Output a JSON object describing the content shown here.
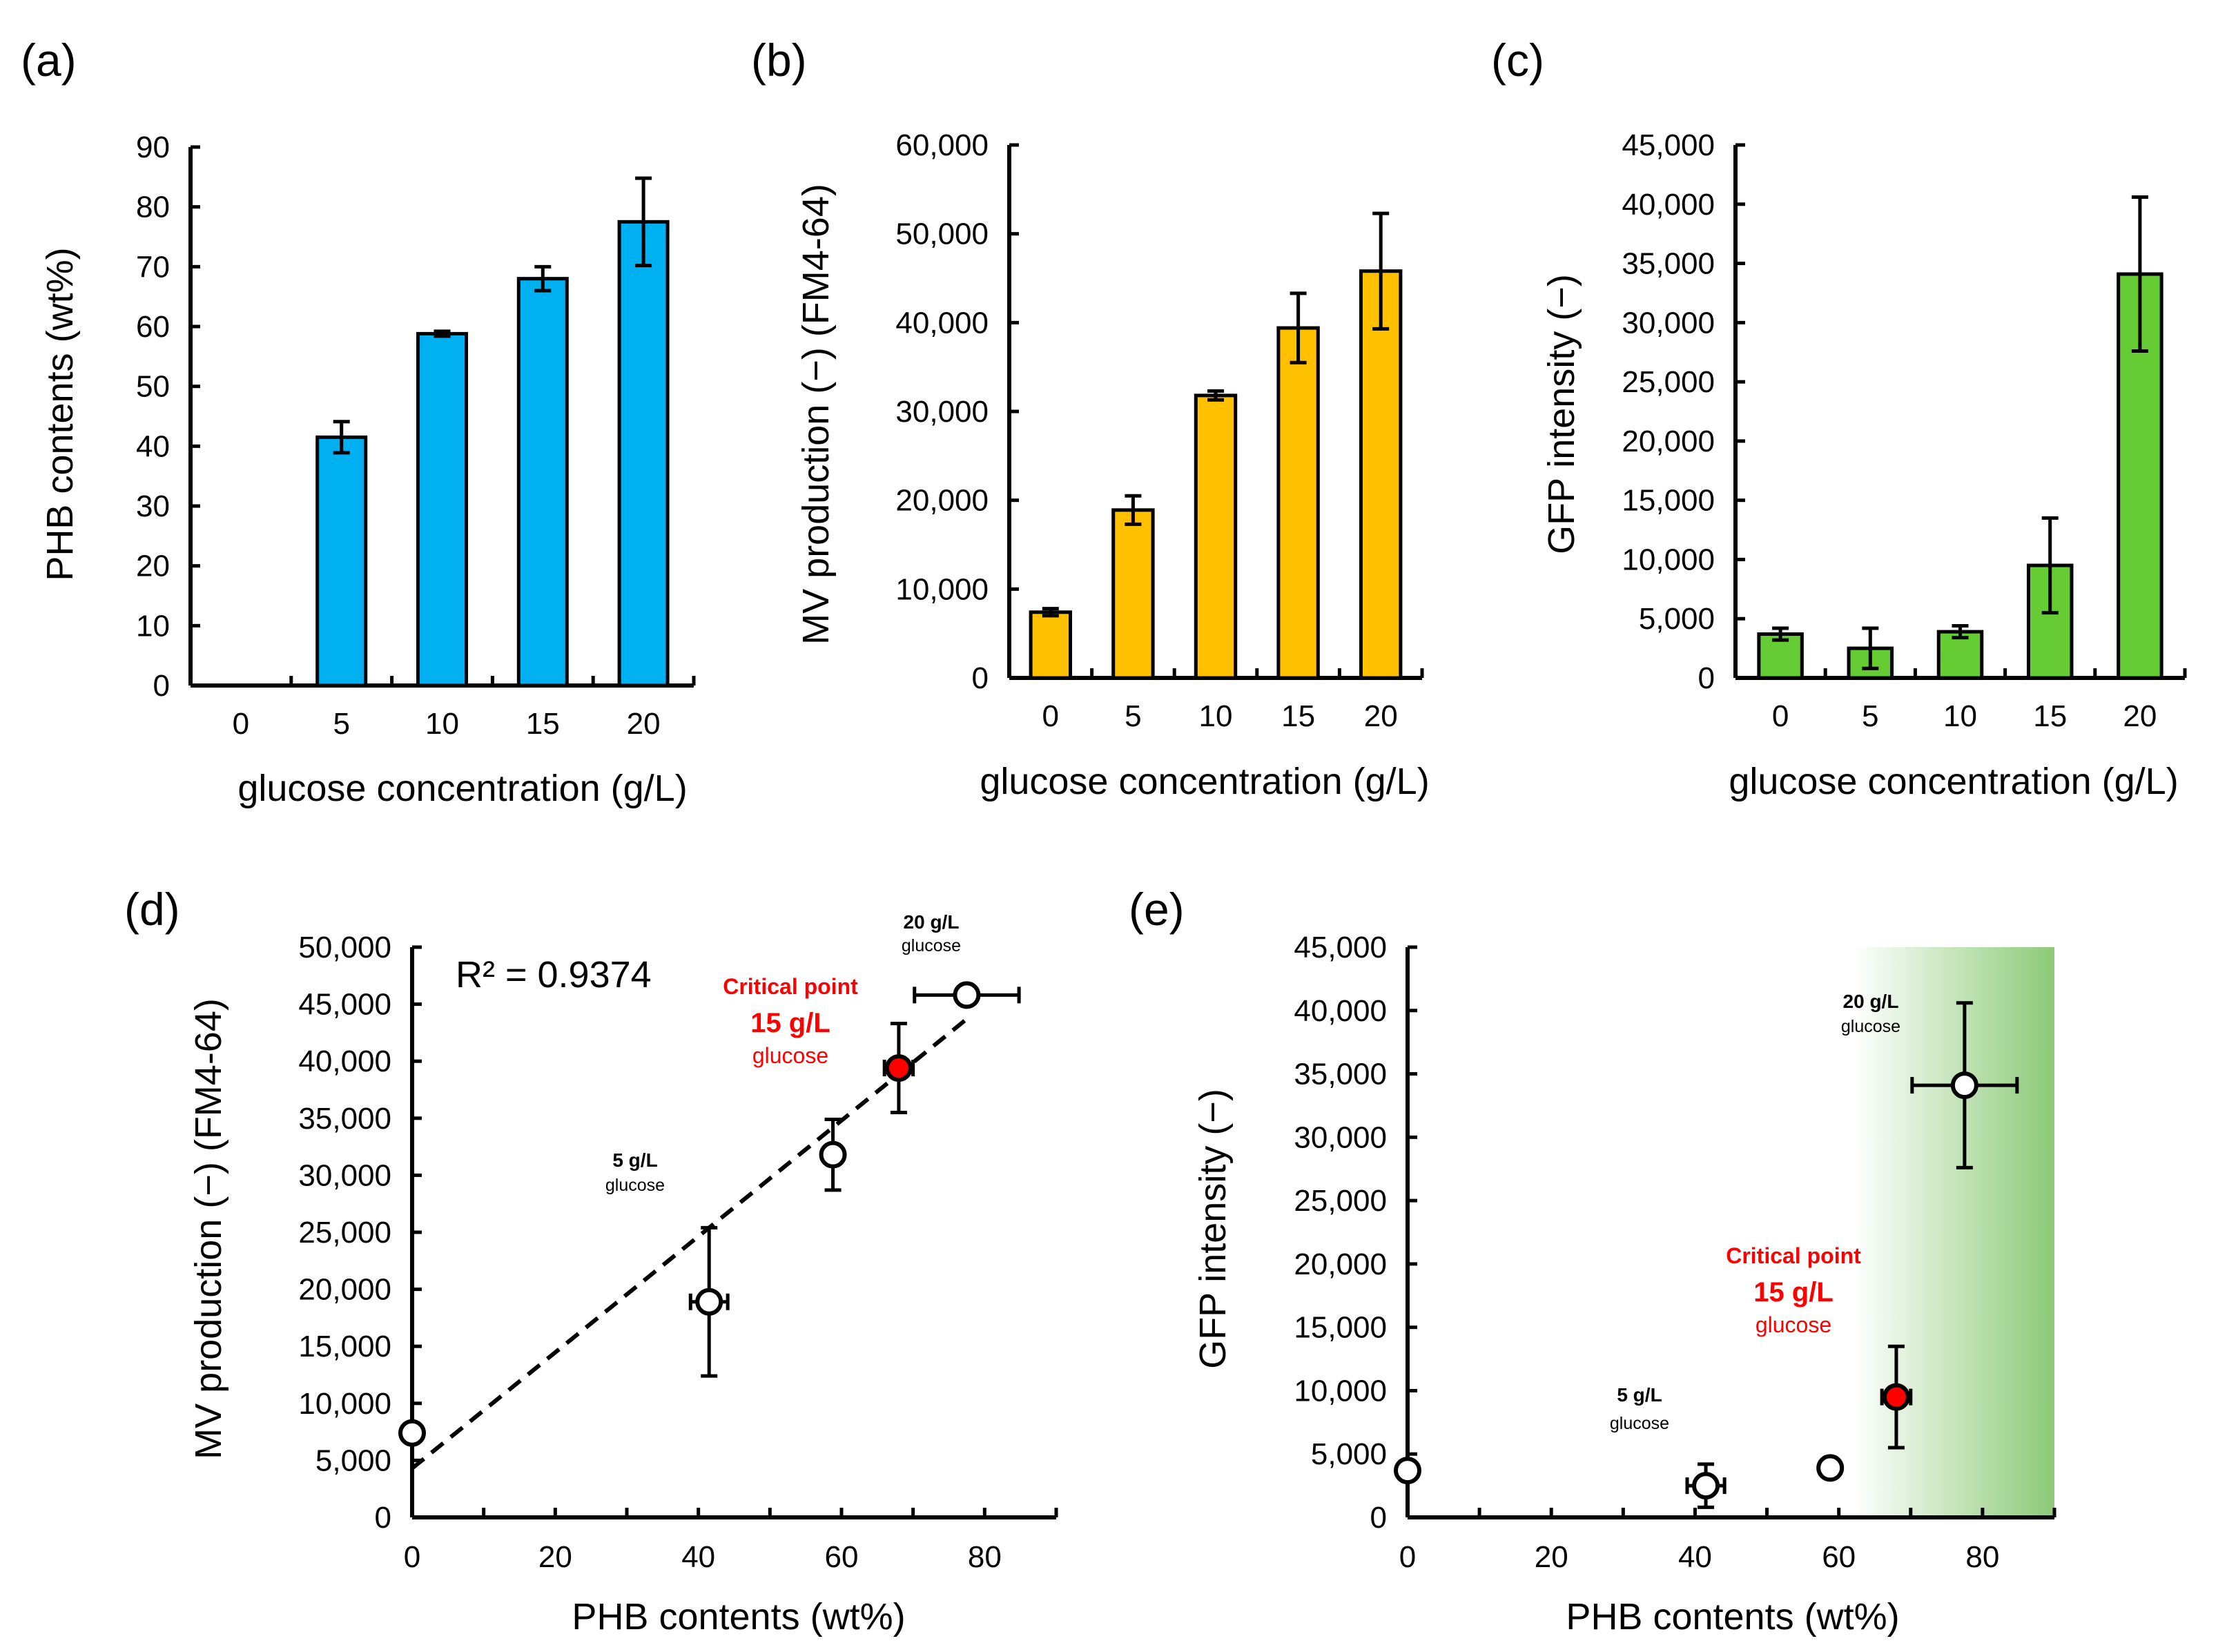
{
  "chart_data": [
    {
      "panel": "(a)",
      "type": "bar",
      "categories": [
        "0",
        "5",
        "10",
        "15",
        "20"
      ],
      "values": [
        0,
        41.5,
        58.8,
        68,
        77.5
      ],
      "errors": [
        0,
        2.6,
        0.4,
        2,
        7.3
      ],
      "color": "#00b0f0",
      "ylabel": "PHB contents (wt%)",
      "xlabel": "glucose concentration (g/L)",
      "ylim": [
        0,
        90
      ],
      "yticks": [
        "0",
        "10",
        "20",
        "30",
        "40",
        "50",
        "60",
        "70",
        "80",
        "90"
      ]
    },
    {
      "panel": "(b)",
      "type": "bar",
      "categories": [
        "0",
        "5",
        "10",
        "15",
        "20"
      ],
      "values": [
        7400,
        18900,
        31800,
        39400,
        45800
      ],
      "errors": [
        400,
        1600,
        500,
        3900,
        6500
      ],
      "color": "#ffc000",
      "ylabel": "MV production (−) (FM4-64)",
      "xlabel": "glucose concentration  (g/L)",
      "ylim": [
        0,
        60000
      ],
      "yticks": [
        "0",
        "10,000",
        "20,000",
        "30,000",
        "40,000",
        "50,000",
        "60,000"
      ]
    },
    {
      "panel": "(c)",
      "type": "bar",
      "categories": [
        "0",
        "5",
        "10",
        "15",
        "20"
      ],
      "values": [
        3700,
        2500,
        3900,
        9500,
        34100
      ],
      "errors": [
        500,
        1700,
        500,
        4000,
        6500
      ],
      "color": "#66cc33",
      "ylabel": "GFP intensity (−)",
      "xlabel": "glucose concentration (g/L)",
      "ylim": [
        0,
        45000
      ],
      "yticks": [
        "0",
        "5,000",
        "10,000",
        "15,000",
        "20,000",
        "25,000",
        "30,000",
        "35,000",
        "40,000",
        "45,000"
      ]
    },
    {
      "panel": "(d)",
      "type": "scatter",
      "points": [
        {
          "x": 0,
          "y": 7400,
          "xerr": 0,
          "yerr": 400,
          "marker": "open"
        },
        {
          "x": 41.5,
          "y": 18900,
          "xerr": 2.6,
          "yerr": 6500,
          "marker": "open"
        },
        {
          "x": 58.8,
          "y": 31800,
          "xerr": 0.4,
          "yerr": 3100,
          "marker": "open"
        },
        {
          "x": 68,
          "y": 39400,
          "xerr": 2,
          "yerr": 3900,
          "marker": "red"
        },
        {
          "x": 77.5,
          "y": 45800,
          "xerr": 7.3,
          "yerr": 400,
          "marker": "open"
        }
      ],
      "trendline": {
        "x": [
          0,
          77.5
        ],
        "y": [
          4300,
          43700
        ]
      },
      "r2_text": "R² = 0.9374",
      "annotations": {
        "point_20_line1": "20 g/L",
        "point_20_line2": "glucose",
        "critical_line1": "Critical point",
        "critical_line2": "15 g/L",
        "critical_line3": "glucose",
        "point_5_line1": "5 g/L",
        "point_5_line2": "glucose"
      },
      "ylabel": "MV production (−) (FM4-64)",
      "xlabel": "PHB contents (wt%)",
      "xlim": [
        0,
        90
      ],
      "ylim": [
        0,
        50000
      ],
      "xticks": [
        "0",
        "20",
        "40",
        "60",
        "80"
      ],
      "yticks": [
        "0",
        "5,000",
        "10,000",
        "15,000",
        "20,000",
        "25,000",
        "30,000",
        "35,000",
        "40,000",
        "45,000",
        "50,000"
      ]
    },
    {
      "panel": "(e)",
      "type": "scatter",
      "points": [
        {
          "x": 0,
          "y": 3700,
          "xerr": 0,
          "yerr": 400,
          "marker": "open"
        },
        {
          "x": 41.5,
          "y": 2500,
          "xerr": 2.6,
          "yerr": 1700,
          "marker": "open"
        },
        {
          "x": 58.8,
          "y": 3900,
          "xerr": 0.4,
          "yerr": 400,
          "marker": "open"
        },
        {
          "x": 68,
          "y": 9500,
          "xerr": 2,
          "yerr": 4000,
          "marker": "red"
        },
        {
          "x": 77.5,
          "y": 34100,
          "xerr": 7.3,
          "yerr": 6500,
          "marker": "open"
        }
      ],
      "highlight_region": {
        "x_from": 62,
        "x_to": 90,
        "color": "#66b84a"
      },
      "annotations": {
        "point_20_line1": "20 g/L",
        "point_20_line2": "glucose",
        "critical_line1": "Critical point",
        "critical_line2": "15 g/L",
        "critical_line3": "glucose",
        "point_5_line1": "5 g/L",
        "point_5_line2": "glucose"
      },
      "ylabel": "GFP intensity (−)",
      "xlabel": "PHB contents (wt%)",
      "xlim": [
        0,
        90
      ],
      "ylim": [
        0,
        45000
      ],
      "xticks": [
        "0",
        "20",
        "40",
        "60",
        "80"
      ],
      "yticks": [
        "0",
        "5,000",
        "10,000",
        "15,000",
        "20,000",
        "25,000",
        "30,000",
        "35,000",
        "40,000",
        "45,000"
      ]
    }
  ],
  "colors": {
    "axis": "#000000",
    "critical": "#ff0000"
  }
}
